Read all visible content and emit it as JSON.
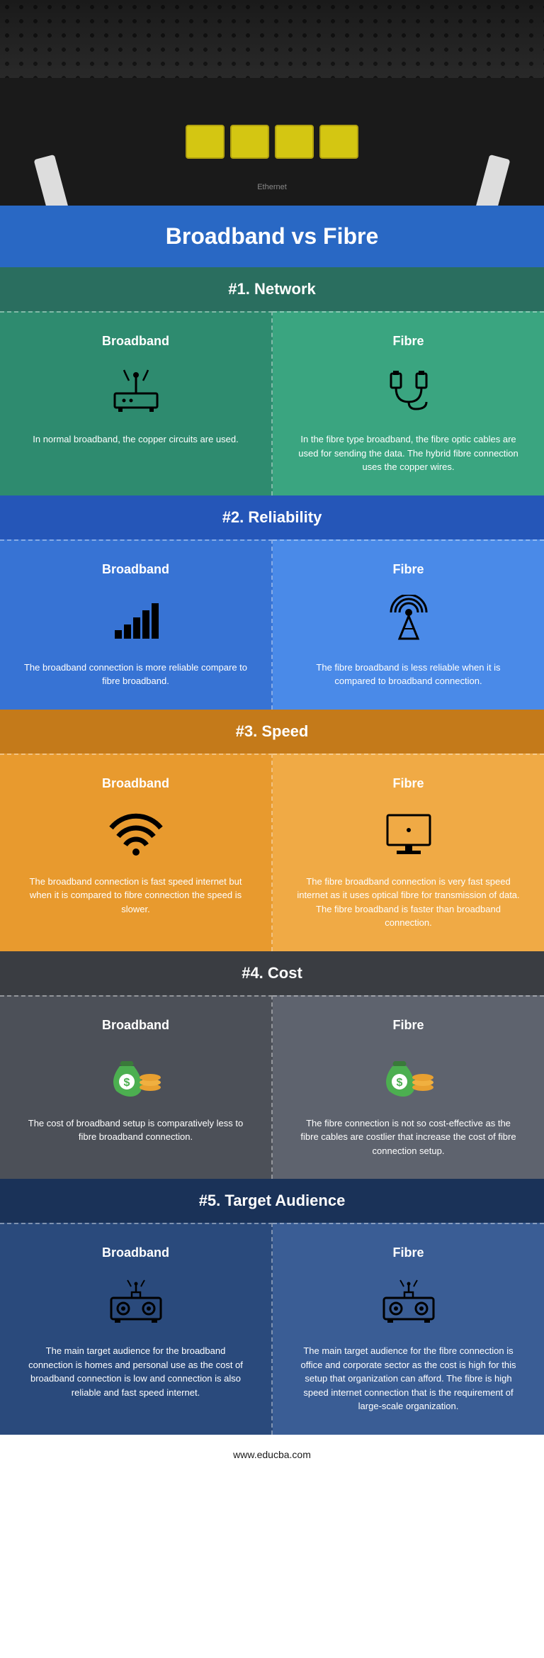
{
  "title": "Broadband vs Fibre",
  "footer": "www.educba.com",
  "sections": [
    {
      "header": "#1. Network",
      "header_bg": "bg-teal-dark",
      "left_bg": "bg-teal",
      "right_bg": "bg-teal-light",
      "left": {
        "title": "Broadband",
        "text": "In normal broadband, the copper circuits are used."
      },
      "right": {
        "title": "Fibre",
        "text": "In the fibre type broadband, the fibre optic cables are used for sending the data. The hybrid fibre connection uses the copper wires."
      }
    },
    {
      "header": "#2. Reliability",
      "header_bg": "bg-blue-dark",
      "left_bg": "bg-blue",
      "right_bg": "bg-blue-light",
      "left": {
        "title": "Broadband",
        "text": "The broadband connection is more reliable compare to fibre broadband."
      },
      "right": {
        "title": "Fibre",
        "text": "The fibre broadband is less reliable when it is compared to broadband connection."
      }
    },
    {
      "header": "#3. Speed",
      "header_bg": "bg-orange-dark",
      "left_bg": "bg-orange",
      "right_bg": "bg-orange-light",
      "left": {
        "title": "Broadband",
        "text": "The broadband connection is fast speed internet but when it is compared to fibre connection the speed is slower."
      },
      "right": {
        "title": "Fibre",
        "text": "The fibre broadband connection is very fast speed internet as it uses optical fibre for transmission of data. The fibre broadband is faster than broadband connection."
      }
    },
    {
      "header": "#4. Cost",
      "header_bg": "bg-gray-dark",
      "left_bg": "bg-gray",
      "right_bg": "bg-gray-light",
      "left": {
        "title": "Broadband",
        "text": "The cost of broadband setup is comparatively less to fibre broadband connection."
      },
      "right": {
        "title": "Fibre",
        "text": "The fibre connection is not so cost-effective as the fibre cables are costlier that increase the cost of fibre connection setup."
      }
    },
    {
      "header": "#5. Target Audience",
      "header_bg": "bg-navy-dark",
      "left_bg": "bg-navy",
      "right_bg": "bg-navy-light",
      "left": {
        "title": "Broadband",
        "text": "The main target audience for the broadband connection is homes and personal use as the cost of broadband connection is low and connection is also reliable and fast speed internet."
      },
      "right": {
        "title": "Fibre",
        "text": "The main target audience for the fibre connection is office and corporate sector as the cost is high for this setup that organization can afford. The fibre is high speed internet connection that is the requirement of large-scale organization."
      }
    }
  ]
}
